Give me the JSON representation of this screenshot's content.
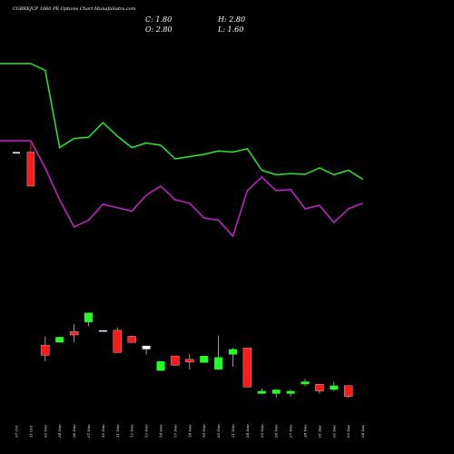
{
  "title": "CGBREJCP 1060 PE Options Chart MunafaSutra.com",
  "ohlc": {
    "c": "C: 1.80",
    "h": "H: 2.80",
    "o": "O: 2.80",
    "l": "L: 1.60"
  },
  "colors": {
    "up": "#22ff22",
    "down": "#ff1a1a",
    "green_line": "#22ee22",
    "magenta_line": "#cc22cc",
    "background": "#000000"
  },
  "chart_data": {
    "type": "candlestick",
    "x": [
      "27 Oct",
      "31 Oct",
      "03 Nov",
      "04 Nov",
      "06 Nov",
      "07 Nov",
      "10 Nov",
      "11 Nov",
      "12 Nov",
      "13 Nov",
      "14 Nov",
      "17 Nov",
      "18 Nov",
      "19 Nov",
      "20 Nov",
      "21 Nov",
      "24 Nov",
      "25 Nov",
      "26 Nov",
      "27 Nov",
      "28 Nov",
      "01 Dec",
      "02 Dec",
      "03 Dec",
      "04 Dec"
    ],
    "price_candles": [
      {
        "date": "27 Oct",
        "open": 9.3,
        "high": 9.3,
        "low": 9.3,
        "close": 9.3,
        "dir": "flat"
      },
      {
        "date": "31 Oct",
        "open": 9.3,
        "high": 9.7,
        "low": 7.8,
        "close": 7.8,
        "dir": "down"
      }
    ],
    "volume_candles": [
      {
        "open": 1.72,
        "high": 1.98,
        "low": 1.24,
        "close": 1.42,
        "dir": "down"
      },
      {
        "open": 1.8,
        "high": 1.96,
        "low": 1.8,
        "close": 1.96,
        "dir": "up"
      },
      {
        "open": 2.12,
        "high": 2.34,
        "low": 1.8,
        "close": 2.02,
        "dir": "down"
      },
      {
        "open": 2.4,
        "high": 2.54,
        "low": 2.28,
        "close": 2.68,
        "dir": "up"
      },
      {
        "open": 2.16,
        "high": 2.16,
        "low": 2.16,
        "close": 2.16,
        "dir": "flat"
      },
      {
        "open": 2.16,
        "high": 2.24,
        "low": 1.5,
        "close": 1.5,
        "dir": "down"
      },
      {
        "open": 1.98,
        "high": 2.0,
        "low": 1.8,
        "close": 1.8,
        "dir": "down"
      },
      {
        "open": 1.6,
        "high": 1.7,
        "low": 1.44,
        "close": 1.7,
        "dir": "flat"
      },
      {
        "open": 0.96,
        "high": 1.24,
        "low": 0.96,
        "close": 1.24,
        "dir": "up"
      },
      {
        "open": 1.4,
        "high": 1.4,
        "low": 1.12,
        "close": 1.12,
        "dir": "down"
      },
      {
        "open": 1.3,
        "high": 1.46,
        "low": 1.0,
        "close": 1.22,
        "dir": "down"
      },
      {
        "open": 1.2,
        "high": 1.4,
        "low": 1.2,
        "close": 1.4,
        "dir": "up"
      },
      {
        "open": 1.0,
        "high": 2.0,
        "low": 1.0,
        "close": 1.36,
        "dir": "up"
      },
      {
        "open": 1.44,
        "high": 1.64,
        "low": 1.08,
        "close": 1.6,
        "dir": "up"
      },
      {
        "open": 1.64,
        "high": 1.64,
        "low": 0.48,
        "close": 0.48,
        "dir": "down"
      },
      {
        "open": 0.28,
        "high": 0.44,
        "low": 0.28,
        "close": 0.36,
        "dir": "up"
      },
      {
        "open": 0.28,
        "high": 0.4,
        "low": 0.16,
        "close": 0.4,
        "dir": "up"
      },
      {
        "open": 0.28,
        "high": 0.4,
        "low": 0.2,
        "close": 0.36,
        "dir": "up"
      },
      {
        "open": 0.56,
        "high": 0.72,
        "low": 0.5,
        "close": 0.64,
        "dir": "up"
      },
      {
        "open": 0.56,
        "high": 0.56,
        "low": 0.28,
        "close": 0.36,
        "dir": "down"
      },
      {
        "open": 0.4,
        "high": 0.64,
        "low": 0.36,
        "close": 0.52,
        "dir": "up"
      },
      {
        "open": 0.52,
        "high": 0.52,
        "low": 0.16,
        "close": 0.2,
        "dir": "down"
      }
    ],
    "green_line": [
      13.2,
      13.2,
      12.9,
      9.5,
      9.9,
      9.95,
      10.6,
      10.0,
      9.5,
      9.7,
      9.6,
      9.0,
      9.1,
      9.2,
      9.35,
      9.3,
      9.45,
      8.5,
      8.3,
      8.35,
      8.32,
      8.6,
      8.3,
      8.5,
      8.1
    ],
    "magenta_line": [
      9.8,
      9.8,
      8.6,
      7.2,
      6.0,
      6.3,
      7.0,
      6.85,
      6.7,
      7.4,
      7.8,
      7.2,
      7.05,
      6.4,
      6.3,
      5.6,
      7.6,
      8.2,
      7.6,
      7.65,
      6.8,
      6.95,
      6.2,
      6.8,
      7.05
    ]
  }
}
